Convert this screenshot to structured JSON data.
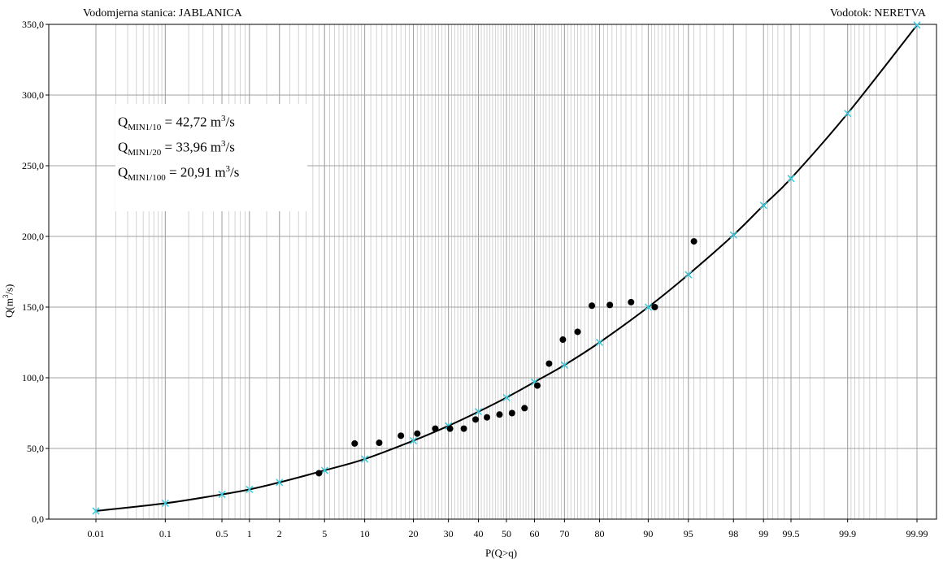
{
  "header": {
    "station": "Vodomjerna stanica: JABLANICA",
    "river": "Vodotok: NERETVA"
  },
  "info_box": {
    "lines": [
      {
        "q": "Q",
        "sub": "MIN1/10",
        "value": " = 42,72 m",
        "sup": "3",
        "unit": "/s"
      },
      {
        "q": "Q",
        "sub": "MIN1/20",
        "value": " = 33,96 m",
        "sup": "3",
        "unit": "/s"
      },
      {
        "q": "Q",
        "sub": "MIN1/100",
        "value": " = 20,91 m",
        "sup": "3",
        "unit": "/s"
      }
    ]
  },
  "chart_data": {
    "type": "scatter",
    "x_scale": "normal probability",
    "xlabel": "P(Q>q)",
    "ylabel_parts": {
      "main": "Q(m",
      "sup": "3",
      "tail": "/s)"
    },
    "x_tick_values": [
      0.01,
      0.1,
      0.5,
      1,
      2,
      5,
      10,
      20,
      30,
      40,
      50,
      60,
      70,
      80,
      90,
      95,
      98,
      99,
      99.5,
      99.9,
      99.99
    ],
    "x_tick_labels": [
      "0.01",
      "0.1",
      "0.5",
      "1",
      "2",
      "5",
      "10",
      "20",
      "30",
      "40",
      "50",
      "60",
      "70",
      "80",
      "90",
      "95",
      "98",
      "99",
      "99.5",
      "99.9",
      "99.99"
    ],
    "ylim": [
      0,
      350
    ],
    "y_ticks": [
      0,
      50,
      100,
      150,
      200,
      250,
      300,
      350
    ],
    "y_tick_labels": [
      "0,0",
      "50,0",
      "100,0",
      "150,0",
      "200,0",
      "250,0",
      "300,0",
      "350,0"
    ],
    "grid": true,
    "colors": {
      "observed": "#000000",
      "fitted_markers": "#33ccdd",
      "curve": "#000000",
      "grid": "#c8c8c8"
    },
    "series": [
      {
        "kind": "observed points",
        "x": [
          4.5,
          8.5,
          12.5,
          17,
          21,
          26,
          30.5,
          35,
          39,
          43,
          47.5,
          52,
          56.5,
          61,
          65,
          69.5,
          74,
          78,
          82.5,
          87,
          91,
          95.5
        ],
        "y": [
          32.5,
          53.5,
          54.0,
          59.0,
          60.5,
          64.0,
          64.0,
          64.0,
          70.5,
          72.0,
          74.0,
          75.0,
          78.5,
          94.5,
          110.0,
          127.0,
          132.5,
          151.0,
          151.5,
          153.5,
          150.0,
          196.5
        ]
      },
      {
        "kind": "fitted markers",
        "x": [
          0.01,
          0.1,
          0.5,
          1,
          2,
          5,
          10,
          20,
          30,
          40,
          50,
          60,
          70,
          80,
          90,
          95,
          98,
          99,
          99.5,
          99.9,
          99.99
        ],
        "y": [
          5.8,
          11.2,
          17.5,
          21.0,
          26.0,
          34.5,
          42.5,
          55.5,
          66.0,
          76.0,
          86.0,
          97.0,
          109.0,
          125.0,
          150.0,
          173.0,
          201.0,
          222.0,
          241.0,
          287.0,
          349.5
        ]
      }
    ]
  }
}
